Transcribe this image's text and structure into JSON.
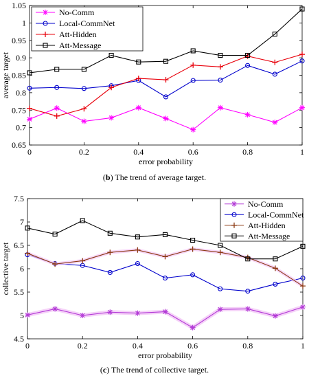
{
  "chart_data": [
    {
      "type": "line",
      "panel": "b",
      "title": "",
      "xlabel": "error probability",
      "ylabel": "average target",
      "xlim": [
        0,
        1
      ],
      "ylim": [
        0.65,
        1.05
      ],
      "x": [
        0,
        0.1,
        0.2,
        0.3,
        0.4,
        0.5,
        0.6,
        0.7,
        0.8,
        0.9,
        1
      ],
      "xticks": [
        "0",
        "0.2",
        "0.4",
        "0.6",
        "0.8",
        "1"
      ],
      "yticks": [
        "0.65",
        "0.7",
        "0.75",
        "0.8",
        "0.85",
        "0.9",
        "0.95",
        "1",
        "1.05"
      ],
      "grid": false,
      "legend_position": "top-left",
      "series": [
        {
          "name": "No-Comm",
          "color": "#ff00ff",
          "marker": "asterisk",
          "values": [
            0.724,
            0.756,
            0.718,
            0.728,
            0.757,
            0.726,
            0.694,
            0.757,
            0.737,
            0.715,
            0.757
          ]
        },
        {
          "name": "Local-CommNet",
          "color": "#0000cc",
          "marker": "circle",
          "values": [
            0.813,
            0.815,
            0.812,
            0.82,
            0.835,
            0.788,
            0.835,
            0.836,
            0.878,
            0.853,
            0.891
          ]
        },
        {
          "name": "Att-Hidden",
          "color": "#e8000b",
          "marker": "plus",
          "values": [
            0.755,
            0.733,
            0.754,
            0.815,
            0.841,
            0.837,
            0.879,
            0.874,
            0.905,
            0.887,
            0.91
          ]
        },
        {
          "name": "Att-Message",
          "color": "#000000",
          "marker": "square",
          "values": [
            0.857,
            0.867,
            0.867,
            0.907,
            0.888,
            0.89,
            0.92,
            0.907,
            0.907,
            0.968,
            1.04
          ]
        }
      ]
    },
    {
      "type": "line",
      "panel": "c",
      "title": "",
      "xlabel": "error probability",
      "ylabel": "collective target",
      "xlim": [
        0,
        1
      ],
      "ylim": [
        4.5,
        7.5
      ],
      "x": [
        0,
        0.1,
        0.2,
        0.3,
        0.4,
        0.5,
        0.6,
        0.7,
        0.8,
        0.9,
        1
      ],
      "xticks": [
        "0",
        "0.2",
        "0.4",
        "0.6",
        "0.8",
        "1"
      ],
      "yticks": [
        "4.5",
        "5",
        "5.5",
        "6",
        "6.5",
        "7",
        "7.5"
      ],
      "grid": false,
      "legend_position": "top-right",
      "series": [
        {
          "name": "No-Comm",
          "color": "#b23ad6",
          "marker": "asterisk",
          "values": [
            5.01,
            5.14,
            5.0,
            5.07,
            5.05,
            5.08,
            4.74,
            5.13,
            5.14,
            4.99,
            5.18
          ]
        },
        {
          "name": "Local-CommNet",
          "color": "#0000cc",
          "marker": "circle",
          "values": [
            6.3,
            6.11,
            6.07,
            5.92,
            6.11,
            5.8,
            5.87,
            5.57,
            5.52,
            5.67,
            5.8
          ]
        },
        {
          "name": "Att-Hidden",
          "color": "#8b3a12",
          "marker": "plus",
          "values": [
            6.33,
            6.1,
            6.17,
            6.35,
            6.4,
            6.26,
            6.42,
            6.35,
            6.24,
            6.01,
            5.63
          ]
        },
        {
          "name": "Att-Message",
          "color": "#000000",
          "marker": "square",
          "values": [
            6.87,
            6.74,
            7.03,
            6.76,
            6.68,
            6.73,
            6.61,
            6.5,
            6.21,
            6.21,
            6.48
          ]
        }
      ]
    }
  ],
  "captions": {
    "b": {
      "label": "b",
      "text": "The trend of average target."
    },
    "c": {
      "label": "c",
      "text": "The trend of collective target."
    }
  }
}
